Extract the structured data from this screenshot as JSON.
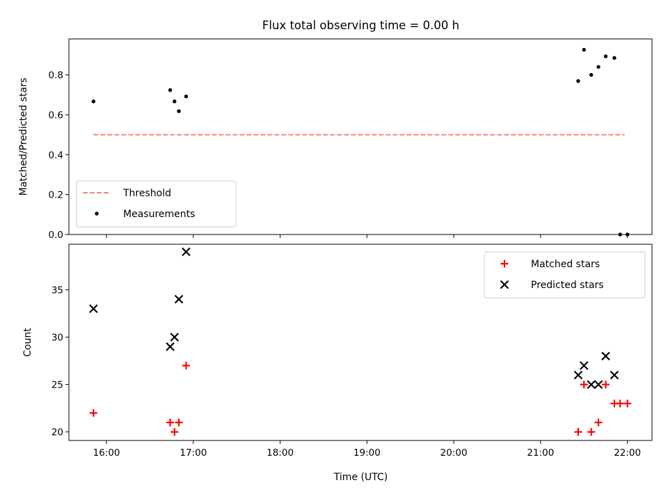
{
  "figure": {
    "title": "Flux total observing time = 0.00 h",
    "xlabel": "Time (UTC)"
  },
  "chart_data": [
    {
      "type": "scatter",
      "title": "Flux total observing time = 0.00 h",
      "xlabel": "",
      "ylabel": "Matched/Predicted stars",
      "xlim": [
        "15:34",
        "22:17"
      ],
      "ylim": [
        0.0,
        0.98
      ],
      "xticks": [
        "16:00",
        "17:00",
        "18:00",
        "19:00",
        "20:00",
        "21:00",
        "22:00"
      ],
      "yticks": [
        0.0,
        0.2,
        0.4,
        0.6,
        0.8
      ],
      "ytick_labels": [
        "0.0",
        "0.2",
        "0.4",
        "0.6",
        "0.8"
      ],
      "legend": {
        "position": "lower-left",
        "entries": [
          "Threshold",
          "Measurements"
        ]
      },
      "grid": false,
      "series": [
        {
          "name": "Threshold",
          "kind": "dashed-line",
          "color": "#ff7f7f",
          "points": [
            {
              "x": "15:51",
              "y": 0.5
            },
            {
              "x": "21:58",
              "y": 0.5
            }
          ]
        },
        {
          "name": "Measurements",
          "kind": "dot",
          "color": "#000000",
          "points": [
            {
              "x": "15:51",
              "y": 0.667
            },
            {
              "x": "16:44",
              "y": 0.724
            },
            {
              "x": "16:47",
              "y": 0.667
            },
            {
              "x": "16:50",
              "y": 0.618
            },
            {
              "x": "16:55",
              "y": 0.692
            },
            {
              "x": "21:26",
              "y": 0.769
            },
            {
              "x": "21:30",
              "y": 0.926
            },
            {
              "x": "21:35",
              "y": 0.8
            },
            {
              "x": "21:40",
              "y": 0.84
            },
            {
              "x": "21:45",
              "y": 0.893
            },
            {
              "x": "21:51",
              "y": 0.885
            },
            {
              "x": "21:55",
              "y": 0.0
            },
            {
              "x": "22:00",
              "y": 0.0
            }
          ]
        }
      ]
    },
    {
      "type": "scatter",
      "xlabel": "Time (UTC)",
      "ylabel": "Count",
      "xlim": [
        "15:34",
        "22:17"
      ],
      "ylim": [
        19.1,
        39.8
      ],
      "xticks": [
        "16:00",
        "17:00",
        "18:00",
        "19:00",
        "20:00",
        "21:00",
        "22:00"
      ],
      "yticks": [
        20,
        25,
        30,
        35
      ],
      "ytick_labels": [
        "20",
        "25",
        "30",
        "35"
      ],
      "legend": {
        "position": "upper-right",
        "entries": [
          "Matched stars",
          "Predicted stars"
        ]
      },
      "grid": false,
      "series": [
        {
          "name": "Matched stars",
          "marker": "plus",
          "color": "#ff0000",
          "points": [
            {
              "x": "15:51",
              "y": 22
            },
            {
              "x": "16:44",
              "y": 21
            },
            {
              "x": "16:47",
              "y": 20
            },
            {
              "x": "16:50",
              "y": 21
            },
            {
              "x": "16:55",
              "y": 27
            },
            {
              "x": "21:26",
              "y": 20
            },
            {
              "x": "21:30",
              "y": 25
            },
            {
              "x": "21:35",
              "y": 20
            },
            {
              "x": "21:40",
              "y": 21
            },
            {
              "x": "21:45",
              "y": 25
            },
            {
              "x": "21:51",
              "y": 23
            },
            {
              "x": "21:55",
              "y": 23
            },
            {
              "x": "22:00",
              "y": 23
            }
          ]
        },
        {
          "name": "Predicted stars",
          "marker": "x",
          "color": "#000000",
          "points": [
            {
              "x": "15:51",
              "y": 33
            },
            {
              "x": "16:44",
              "y": 29
            },
            {
              "x": "16:47",
              "y": 30
            },
            {
              "x": "16:50",
              "y": 34
            },
            {
              "x": "16:55",
              "y": 39
            },
            {
              "x": "21:26",
              "y": 26
            },
            {
              "x": "21:30",
              "y": 27
            },
            {
              "x": "21:35",
              "y": 25
            },
            {
              "x": "21:40",
              "y": 25
            },
            {
              "x": "21:45",
              "y": 28
            },
            {
              "x": "21:51",
              "y": 26
            }
          ]
        }
      ]
    }
  ]
}
